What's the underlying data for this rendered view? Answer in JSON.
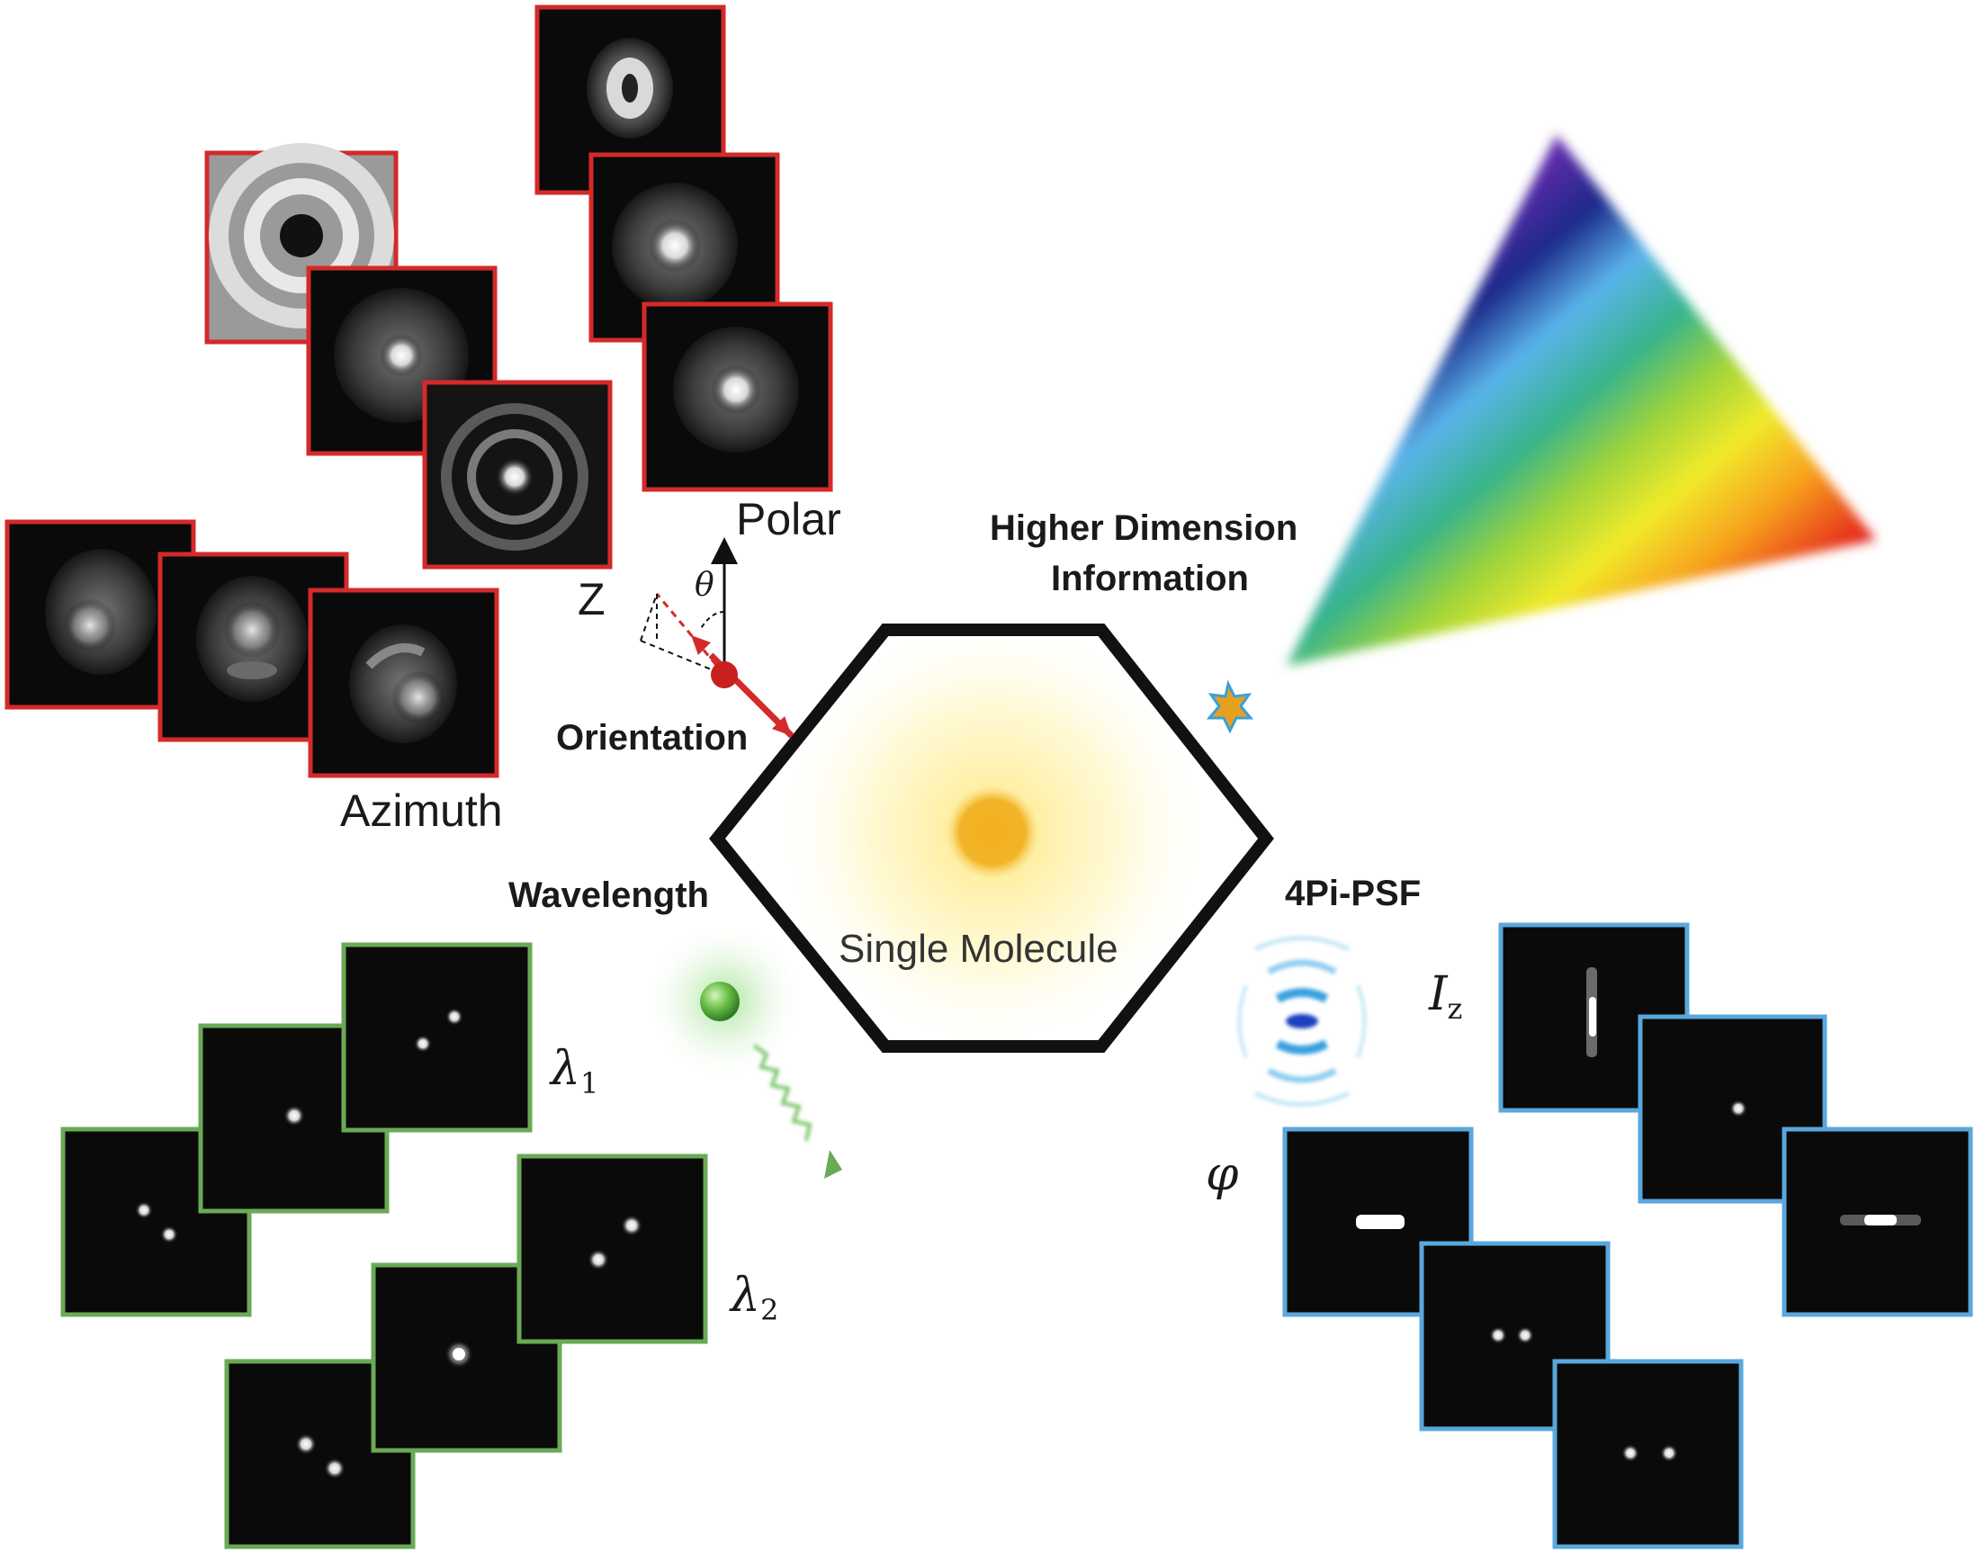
{
  "center": {
    "label": "Single Molecule"
  },
  "orientation": {
    "title": "Orientation",
    "polar_label": "Polar",
    "azimuth_label": "Azimuth",
    "z_label": "Z",
    "theta_label": "θ"
  },
  "higher_dimension": {
    "line1": "Higher Dimension",
    "line2": "Information"
  },
  "wavelength": {
    "title": "Wavelength",
    "lambda_symbol": "λ",
    "lambda1_sub": "1",
    "lambda2_sub": "2"
  },
  "fourpi": {
    "title": "4Pi-PSF",
    "iz_symbol": "I",
    "iz_sub": "z",
    "phi_label": "φ"
  },
  "colors": {
    "orientation_frame": "#d42a2a",
    "wavelength_frame": "#6aaa55",
    "fourpi_frame": "#5aa7dd",
    "hexagon": "#111111",
    "molecule_core": "#f0a800"
  }
}
